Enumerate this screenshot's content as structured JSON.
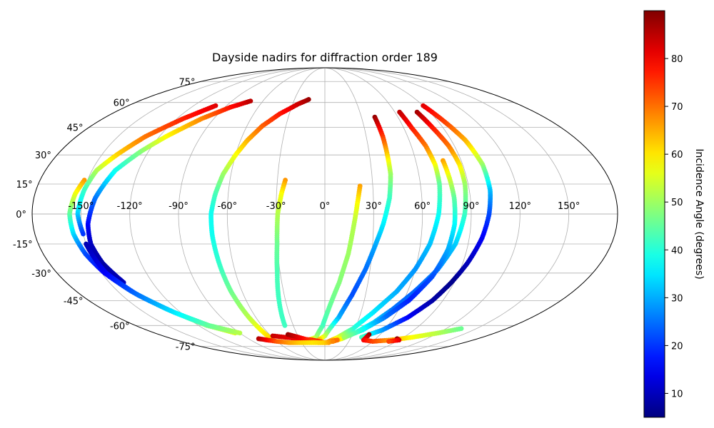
{
  "chart_data": {
    "type": "scatter",
    "projection": "mollweide",
    "title": "Dayside nadirs for diffraction order 189",
    "grid": true,
    "lon_ticks": [
      -150,
      -120,
      -90,
      -60,
      -30,
      0,
      30,
      60,
      90,
      120,
      150
    ],
    "lon_tick_labels": [
      "-150°",
      "-120°",
      "-90°",
      "-60°",
      "-30°",
      "0°",
      "30°",
      "60°",
      "90°",
      "120°",
      "150°"
    ],
    "lat_ticks": [
      75,
      60,
      45,
      30,
      15,
      0,
      -15,
      -30,
      -45,
      -60,
      -75
    ],
    "lat_tick_labels": [
      "75°",
      "60°",
      "45°",
      "30°",
      "15°",
      "0°",
      "-15°",
      "-30°",
      "-45°",
      "-60°",
      "-75°"
    ],
    "colorbar": {
      "label": "Incidence Angle (degrees)",
      "colormap": "jet",
      "range": [
        5,
        90
      ],
      "ticks": [
        10,
        20,
        30,
        40,
        50,
        60,
        70,
        80
      ],
      "tick_labels": [
        "10",
        "20",
        "30",
        "40",
        "50",
        "60",
        "70",
        "80"
      ]
    },
    "series": [
      {
        "points": [
          [
            -152,
            17,
            67
          ],
          [
            -155,
            10,
            57
          ],
          [
            -157,
            0,
            45
          ],
          [
            -156,
            -10,
            34
          ],
          [
            -153,
            -20,
            22
          ],
          [
            -148,
            -30,
            15
          ],
          [
            -140,
            -40,
            25
          ],
          [
            -128,
            -50,
            38
          ],
          [
            -112,
            -60,
            48
          ],
          [
            -95,
            -65,
            55
          ]
        ]
      },
      {
        "points": [
          [
            -140,
            -35,
            10
          ],
          [
            -145,
            -25,
            8
          ],
          [
            -147,
            -15,
            10
          ],
          [
            -146,
            -5,
            15
          ],
          [
            -142,
            8,
            25
          ],
          [
            -135,
            22,
            38
          ],
          [
            -125,
            32,
            48
          ],
          [
            -115,
            40,
            58
          ],
          [
            -100,
            50,
            68
          ],
          [
            -85,
            57,
            78
          ],
          [
            -72,
            61,
            85
          ]
        ]
      },
      {
        "points": [
          [
            -150,
            -15,
            9
          ],
          [
            -147,
            -30,
            15
          ],
          [
            -138,
            -42,
            25
          ],
          [
            -125,
            -52,
            35
          ],
          [
            -110,
            -60,
            45
          ],
          [
            -90,
            -65,
            52
          ]
        ]
      },
      {
        "points": [
          [
            -100,
            58,
            82
          ],
          [
            -115,
            50,
            77
          ],
          [
            -130,
            40,
            70
          ],
          [
            -140,
            30,
            62
          ],
          [
            -147,
            22,
            52
          ],
          [
            -150,
            12,
            42
          ],
          [
            -152,
            0,
            33
          ],
          [
            -150,
            -10,
            20
          ]
        ]
      },
      {
        "points": [
          [
            -16,
            62,
            88
          ],
          [
            -25,
            59,
            84
          ],
          [
            -38,
            53,
            78
          ],
          [
            -48,
            46,
            72
          ],
          [
            -55,
            38,
            65
          ],
          [
            -60,
            30,
            58
          ],
          [
            -65,
            20,
            50
          ],
          [
            -68,
            10,
            43
          ],
          [
            -70,
            0,
            38
          ],
          [
            -70,
            -10,
            38
          ],
          [
            -69,
            -25,
            41
          ],
          [
            -68,
            -40,
            46
          ],
          [
            -66,
            -55,
            52
          ],
          [
            -64,
            -66,
            60
          ],
          [
            -63,
            -69,
            62
          ]
        ]
      },
      {
        "points": [
          [
            -25,
            17,
            67
          ],
          [
            -27,
            10,
            58
          ],
          [
            -29,
            0,
            52
          ],
          [
            -30,
            -15,
            46
          ],
          [
            -32,
            -30,
            43
          ],
          [
            -35,
            -45,
            42
          ],
          [
            -38,
            -60,
            42
          ]
        ]
      },
      {
        "points": [
          [
            22,
            14,
            66
          ],
          [
            20,
            5,
            58
          ],
          [
            18,
            -5,
            52
          ],
          [
            15,
            -20,
            50
          ],
          [
            10,
            -35,
            48
          ],
          [
            3,
            -50,
            45
          ],
          [
            -2,
            -60,
            42
          ],
          [
            -10,
            -68,
            50
          ],
          [
            -20,
            -70,
            62
          ]
        ]
      },
      {
        "points": [
          [
            41,
            51,
            88
          ],
          [
            42,
            40,
            75
          ],
          [
            42,
            30,
            62
          ],
          [
            42,
            20,
            50
          ],
          [
            40,
            8,
            42
          ],
          [
            36,
            -5,
            36
          ],
          [
            32,
            -15,
            30
          ],
          [
            27,
            -28,
            25
          ],
          [
            20,
            -42,
            22
          ],
          [
            12,
            -55,
            30
          ],
          [
            0,
            -67,
            52
          ],
          [
            -8,
            -70,
            65
          ]
        ]
      },
      {
        "points": [
          [
            64,
            54,
            85
          ],
          [
            66,
            45,
            78
          ],
          [
            70,
            35,
            70
          ],
          [
            72,
            25,
            58
          ],
          [
            72,
            15,
            45
          ],
          [
            70,
            0,
            38
          ],
          [
            66,
            -15,
            32
          ],
          [
            60,
            -28,
            28
          ],
          [
            52,
            -40,
            30
          ],
          [
            40,
            -52,
            35
          ],
          [
            28,
            -62,
            40
          ],
          [
            15,
            -68,
            55
          ],
          [
            5,
            -71,
            68
          ]
        ]
      },
      {
        "points": [
          [
            79,
            54,
            87
          ],
          [
            82,
            45,
            78
          ],
          [
            86,
            35,
            70
          ],
          [
            88,
            25,
            60
          ],
          [
            88,
            15,
            50
          ],
          [
            86,
            0,
            42
          ],
          [
            82,
            -15,
            33
          ],
          [
            75,
            -28,
            27
          ],
          [
            65,
            -40,
            24
          ],
          [
            55,
            -50,
            25
          ],
          [
            45,
            -58,
            33
          ],
          [
            32,
            -65,
            42
          ],
          [
            20,
            -69,
            55
          ],
          [
            10,
            -71,
            70
          ]
        ]
      },
      {
        "points": [
          [
            78,
            27,
            66
          ],
          [
            79,
            18,
            55
          ],
          [
            80,
            8,
            45
          ],
          [
            80,
            -5,
            37
          ],
          [
            78,
            -18,
            30
          ],
          [
            73,
            -32,
            22
          ],
          [
            64,
            -45,
            18
          ],
          [
            52,
            -55,
            25
          ],
          [
            38,
            -63,
            38
          ],
          [
            22,
            -68,
            50
          ]
        ]
      },
      {
        "points": [
          [
            90,
            58,
            82
          ],
          [
            95,
            48,
            74
          ],
          [
            100,
            38,
            65
          ],
          [
            103,
            25,
            50
          ],
          [
            103,
            12,
            32
          ],
          [
            101,
            0,
            22
          ],
          [
            98,
            -12,
            15
          ],
          [
            93,
            -25,
            10
          ],
          [
            88,
            -35,
            6
          ],
          [
            82,
            -45,
            8
          ],
          [
            72,
            -55,
            15
          ],
          [
            58,
            -63,
            28
          ],
          [
            42,
            -68,
            42
          ]
        ]
      },
      {
        "points": [
          [
            -58,
            -67,
            84
          ],
          [
            -45,
            -68,
            82
          ],
          [
            -30,
            -69,
            80
          ],
          [
            -15,
            -70,
            78
          ],
          [
            0,
            -72,
            75
          ],
          [
            15,
            -70,
            70
          ]
        ]
      },
      {
        "points": [
          [
            -40,
            -66,
            88
          ],
          [
            -30,
            -68,
            82
          ],
          [
            -20,
            -70,
            76
          ],
          [
            -8,
            -72,
            70
          ],
          [
            5,
            -72,
            68
          ]
        ]
      },
      {
        "points": [
          [
            -78,
            -69,
            86
          ],
          [
            -70,
            -70,
            80
          ],
          [
            -60,
            -71,
            72
          ],
          [
            -45,
            -72,
            66
          ],
          [
            -30,
            -72,
            62
          ],
          [
            -15,
            -72,
            60
          ],
          [
            0,
            -72,
            62
          ],
          [
            10,
            -71,
            68
          ]
        ]
      },
      {
        "points": [
          [
            48,
            -66,
            88
          ],
          [
            47,
            -70,
            80
          ],
          [
            60,
            -71,
            74
          ],
          [
            80,
            -70,
            66
          ],
          [
            100,
            -68,
            58
          ],
          [
            120,
            -65,
            52
          ],
          [
            135,
            -62,
            46
          ]
        ]
      },
      {
        "points": [
          [
            85,
            -69,
            89
          ],
          [
            90,
            -70,
            82
          ],
          [
            80,
            -71,
            74
          ]
        ]
      }
    ]
  }
}
